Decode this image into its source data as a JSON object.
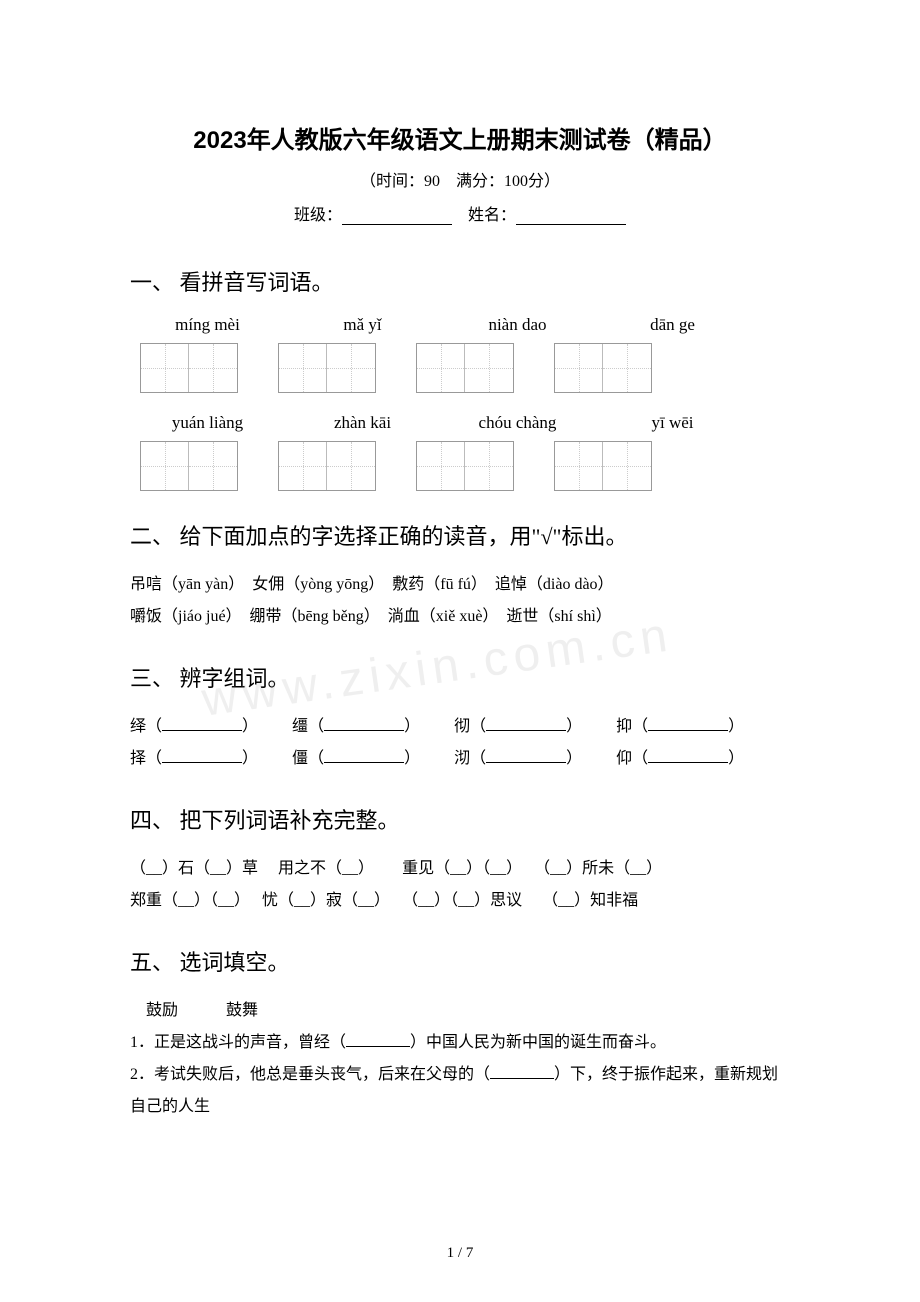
{
  "title": "2023年人教版六年级语文上册期末测试卷（精品）",
  "subtitle": "（时间：90　满分：100分）",
  "info_class": "班级：",
  "info_name": "姓名：",
  "sections": {
    "s1": {
      "heading": "一、 看拼音写词语。",
      "row1": [
        "míng mèi",
        "mǎ yǐ",
        "niàn dao",
        "dān ge"
      ],
      "row2": [
        "yuán liàng",
        "zhàn kāi",
        "chóu chàng",
        "yī wēi"
      ]
    },
    "s2": {
      "heading": "二、 给下面加点的字选择正确的读音，用\"√\"标出。",
      "line1_a": "吊唁（yān yàn）",
      "line1_b": "女佣（yòng yōng）",
      "line1_c": "敷药（fū fú）",
      "line1_d": "追悼（diào dào）",
      "line2_a": "嚼饭（jiáo jué）",
      "line2_b": "绷带（bēng běng）",
      "line2_c": "淌血（xiě xuè）",
      "line2_d": "逝世（shí shì）"
    },
    "s3": {
      "heading": "三、 辨字组词。",
      "pairs": [
        [
          "绎",
          "缰",
          "彻",
          "抑"
        ],
        [
          "择",
          "僵",
          "沏",
          "仰"
        ]
      ]
    },
    "s4": {
      "heading": "四、 把下列词语补充完整。",
      "line1_a": "（__）石（__）草",
      "line1_b": "用之不（__）",
      "line1_c": "重见（__）（__）",
      "line1_d": "（__）所未（__）",
      "line2_a": "郑重（__）（__）",
      "line2_b": "忧（__）寂（__）",
      "line2_c": "（__）（__）思议",
      "line2_d": "（__）知非福"
    },
    "s5": {
      "heading": "五、 选词填空。",
      "words": "鼓励　　　鼓舞",
      "q1_pre": "1．正是这战斗的声音，曾经（",
      "q1_post": "）中国人民为新中国的诞生而奋斗。",
      "q2_pre": "2．考试失败后，他总是垂头丧气，后来在父母的（",
      "q2_post": "）下，终于振作起来，重新规划自己的人生"
    }
  },
  "page_num": "1 / 7",
  "watermark": "www.zixin.com.cn"
}
